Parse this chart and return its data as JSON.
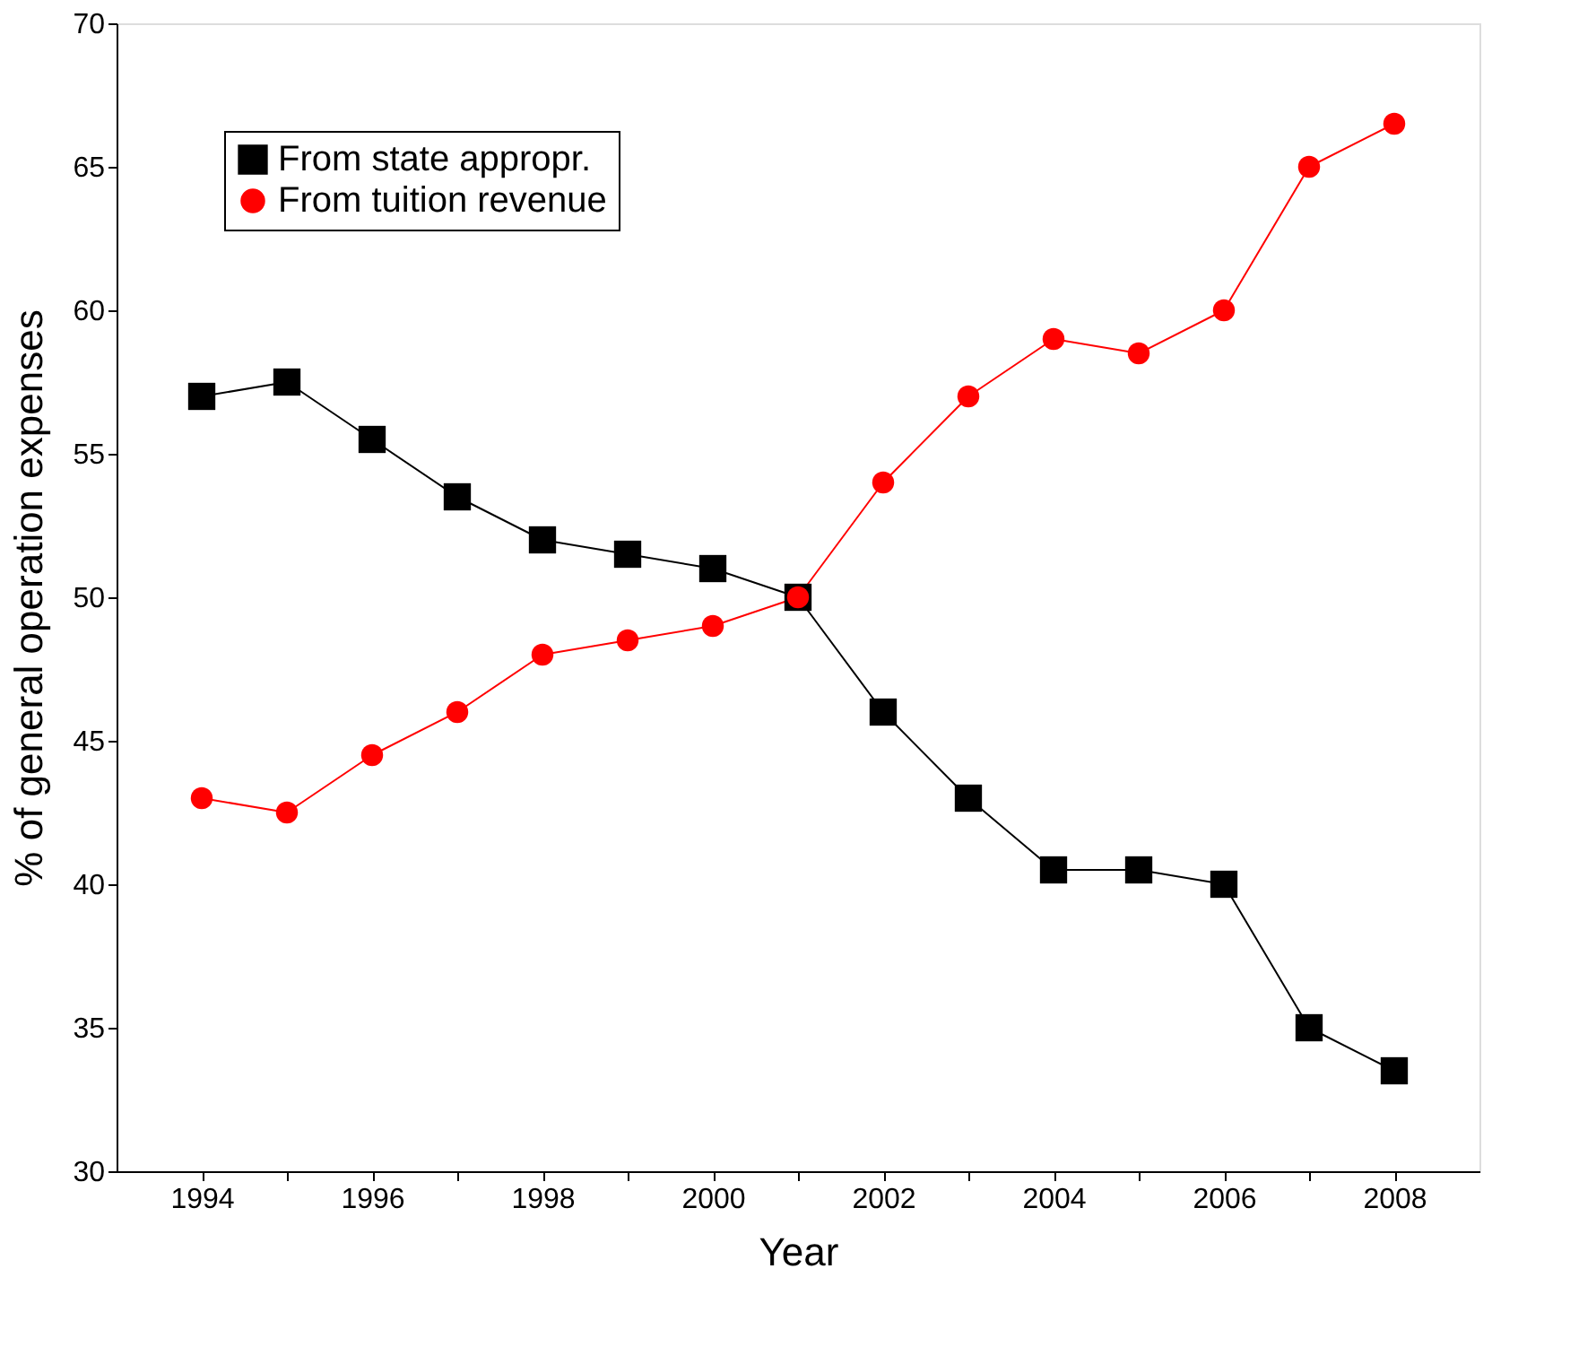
{
  "chart_data": {
    "type": "line",
    "xlabel": "Year",
    "ylabel": "% of general operation expenses",
    "x": [
      1994,
      1995,
      1996,
      1997,
      1998,
      1999,
      2000,
      2001,
      2002,
      2003,
      2004,
      2005,
      2006,
      2007,
      2008
    ],
    "series": [
      {
        "name": "From state appropr.",
        "color": "#000000",
        "marker": "square",
        "values": [
          57,
          57.5,
          55.5,
          53.5,
          52,
          51.5,
          51,
          50,
          46,
          43,
          40.5,
          40.5,
          40,
          35,
          33.5
        ]
      },
      {
        "name": "From tuition revenue",
        "color": "#ff0000",
        "marker": "circle",
        "values": [
          43,
          42.5,
          44.5,
          46,
          48,
          48.5,
          49,
          50,
          54,
          57,
          59,
          58.5,
          60,
          65,
          66.5
        ]
      }
    ],
    "xlim": [
      1993,
      2009
    ],
    "xticks": [
      1994,
      {
        "value": 1995,
        "label": null
      },
      1996,
      {
        "value": 1997,
        "label": null
      },
      1998,
      {
        "value": 1999,
        "label": null
      },
      2000,
      {
        "value": 2001,
        "label": null
      },
      2002,
      {
        "value": 2003,
        "label": null
      },
      2004,
      {
        "value": 2005,
        "label": null
      },
      2006,
      {
        "value": 2007,
        "label": null
      },
      2008
    ],
    "ylim": [
      30,
      70
    ],
    "yticks": [
      30,
      35,
      40,
      45,
      50,
      55,
      60,
      65,
      70
    ],
    "grid": false,
    "legend": "top left",
    "line_style": "solid"
  }
}
